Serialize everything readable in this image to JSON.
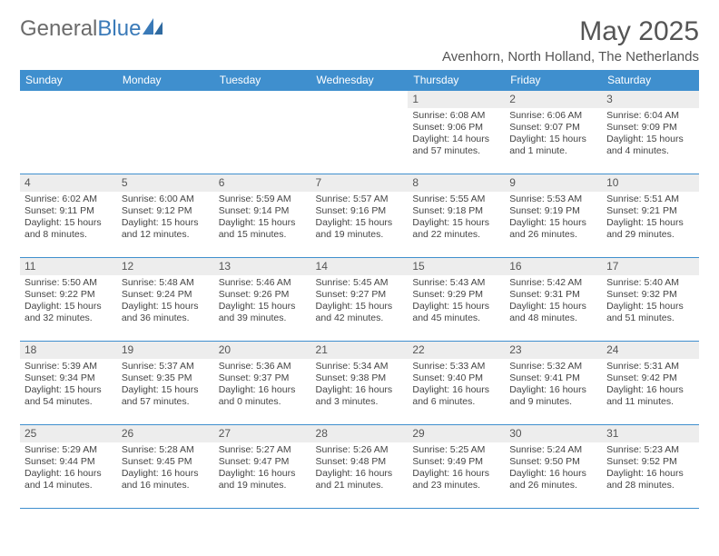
{
  "logo": {
    "text_gray": "General",
    "text_blue": "Blue"
  },
  "title": "May 2025",
  "location": "Avenhorn, North Holland, The Netherlands",
  "colors": {
    "header_bg": "#3f8fce",
    "header_text": "#ffffff",
    "daynum_bg": "#ededed",
    "border": "#3f8fce",
    "logo_gray": "#6b6b6b",
    "logo_blue": "#3a7ab8"
  },
  "day_headers": [
    "Sunday",
    "Monday",
    "Tuesday",
    "Wednesday",
    "Thursday",
    "Friday",
    "Saturday"
  ],
  "weeks": [
    [
      {
        "n": "",
        "sr": "",
        "ss": "",
        "dl": ""
      },
      {
        "n": "",
        "sr": "",
        "ss": "",
        "dl": ""
      },
      {
        "n": "",
        "sr": "",
        "ss": "",
        "dl": ""
      },
      {
        "n": "",
        "sr": "",
        "ss": "",
        "dl": ""
      },
      {
        "n": "1",
        "sr": "Sunrise: 6:08 AM",
        "ss": "Sunset: 9:06 PM",
        "dl": "Daylight: 14 hours and 57 minutes."
      },
      {
        "n": "2",
        "sr": "Sunrise: 6:06 AM",
        "ss": "Sunset: 9:07 PM",
        "dl": "Daylight: 15 hours and 1 minute."
      },
      {
        "n": "3",
        "sr": "Sunrise: 6:04 AM",
        "ss": "Sunset: 9:09 PM",
        "dl": "Daylight: 15 hours and 4 minutes."
      }
    ],
    [
      {
        "n": "4",
        "sr": "Sunrise: 6:02 AM",
        "ss": "Sunset: 9:11 PM",
        "dl": "Daylight: 15 hours and 8 minutes."
      },
      {
        "n": "5",
        "sr": "Sunrise: 6:00 AM",
        "ss": "Sunset: 9:12 PM",
        "dl": "Daylight: 15 hours and 12 minutes."
      },
      {
        "n": "6",
        "sr": "Sunrise: 5:59 AM",
        "ss": "Sunset: 9:14 PM",
        "dl": "Daylight: 15 hours and 15 minutes."
      },
      {
        "n": "7",
        "sr": "Sunrise: 5:57 AM",
        "ss": "Sunset: 9:16 PM",
        "dl": "Daylight: 15 hours and 19 minutes."
      },
      {
        "n": "8",
        "sr": "Sunrise: 5:55 AM",
        "ss": "Sunset: 9:18 PM",
        "dl": "Daylight: 15 hours and 22 minutes."
      },
      {
        "n": "9",
        "sr": "Sunrise: 5:53 AM",
        "ss": "Sunset: 9:19 PM",
        "dl": "Daylight: 15 hours and 26 minutes."
      },
      {
        "n": "10",
        "sr": "Sunrise: 5:51 AM",
        "ss": "Sunset: 9:21 PM",
        "dl": "Daylight: 15 hours and 29 minutes."
      }
    ],
    [
      {
        "n": "11",
        "sr": "Sunrise: 5:50 AM",
        "ss": "Sunset: 9:22 PM",
        "dl": "Daylight: 15 hours and 32 minutes."
      },
      {
        "n": "12",
        "sr": "Sunrise: 5:48 AM",
        "ss": "Sunset: 9:24 PM",
        "dl": "Daylight: 15 hours and 36 minutes."
      },
      {
        "n": "13",
        "sr": "Sunrise: 5:46 AM",
        "ss": "Sunset: 9:26 PM",
        "dl": "Daylight: 15 hours and 39 minutes."
      },
      {
        "n": "14",
        "sr": "Sunrise: 5:45 AM",
        "ss": "Sunset: 9:27 PM",
        "dl": "Daylight: 15 hours and 42 minutes."
      },
      {
        "n": "15",
        "sr": "Sunrise: 5:43 AM",
        "ss": "Sunset: 9:29 PM",
        "dl": "Daylight: 15 hours and 45 minutes."
      },
      {
        "n": "16",
        "sr": "Sunrise: 5:42 AM",
        "ss": "Sunset: 9:31 PM",
        "dl": "Daylight: 15 hours and 48 minutes."
      },
      {
        "n": "17",
        "sr": "Sunrise: 5:40 AM",
        "ss": "Sunset: 9:32 PM",
        "dl": "Daylight: 15 hours and 51 minutes."
      }
    ],
    [
      {
        "n": "18",
        "sr": "Sunrise: 5:39 AM",
        "ss": "Sunset: 9:34 PM",
        "dl": "Daylight: 15 hours and 54 minutes."
      },
      {
        "n": "19",
        "sr": "Sunrise: 5:37 AM",
        "ss": "Sunset: 9:35 PM",
        "dl": "Daylight: 15 hours and 57 minutes."
      },
      {
        "n": "20",
        "sr": "Sunrise: 5:36 AM",
        "ss": "Sunset: 9:37 PM",
        "dl": "Daylight: 16 hours and 0 minutes."
      },
      {
        "n": "21",
        "sr": "Sunrise: 5:34 AM",
        "ss": "Sunset: 9:38 PM",
        "dl": "Daylight: 16 hours and 3 minutes."
      },
      {
        "n": "22",
        "sr": "Sunrise: 5:33 AM",
        "ss": "Sunset: 9:40 PM",
        "dl": "Daylight: 16 hours and 6 minutes."
      },
      {
        "n": "23",
        "sr": "Sunrise: 5:32 AM",
        "ss": "Sunset: 9:41 PM",
        "dl": "Daylight: 16 hours and 9 minutes."
      },
      {
        "n": "24",
        "sr": "Sunrise: 5:31 AM",
        "ss": "Sunset: 9:42 PM",
        "dl": "Daylight: 16 hours and 11 minutes."
      }
    ],
    [
      {
        "n": "25",
        "sr": "Sunrise: 5:29 AM",
        "ss": "Sunset: 9:44 PM",
        "dl": "Daylight: 16 hours and 14 minutes."
      },
      {
        "n": "26",
        "sr": "Sunrise: 5:28 AM",
        "ss": "Sunset: 9:45 PM",
        "dl": "Daylight: 16 hours and 16 minutes."
      },
      {
        "n": "27",
        "sr": "Sunrise: 5:27 AM",
        "ss": "Sunset: 9:47 PM",
        "dl": "Daylight: 16 hours and 19 minutes."
      },
      {
        "n": "28",
        "sr": "Sunrise: 5:26 AM",
        "ss": "Sunset: 9:48 PM",
        "dl": "Daylight: 16 hours and 21 minutes."
      },
      {
        "n": "29",
        "sr": "Sunrise: 5:25 AM",
        "ss": "Sunset: 9:49 PM",
        "dl": "Daylight: 16 hours and 23 minutes."
      },
      {
        "n": "30",
        "sr": "Sunrise: 5:24 AM",
        "ss": "Sunset: 9:50 PM",
        "dl": "Daylight: 16 hours and 26 minutes."
      },
      {
        "n": "31",
        "sr": "Sunrise: 5:23 AM",
        "ss": "Sunset: 9:52 PM",
        "dl": "Daylight: 16 hours and 28 minutes."
      }
    ]
  ]
}
